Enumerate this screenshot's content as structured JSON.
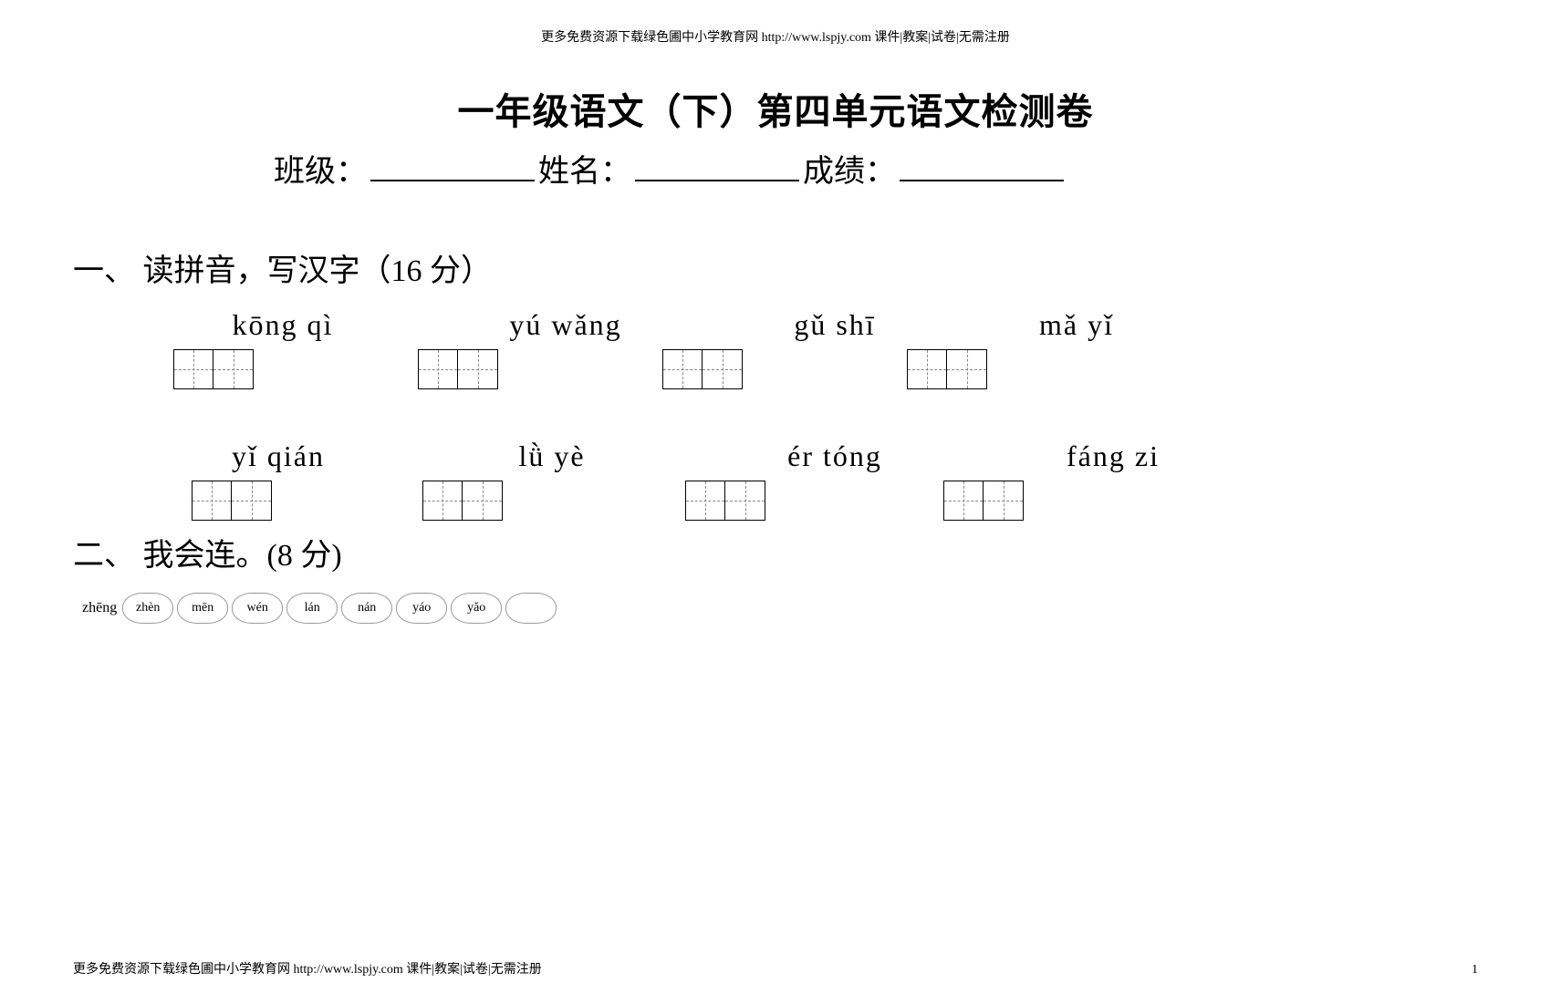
{
  "header_note": "更多免费资源下载绿色圃中小学教育网 http://www.lspjy.com 课件|教案|试卷|无需注册",
  "title": "一年级语文（下）第四单元语文检测卷",
  "info": {
    "class_label": "班级：",
    "name_label": "姓名：",
    "score_label": "成绩："
  },
  "section1": {
    "heading": "一、 读拼音，写汉字（16 分）",
    "row1": {
      "g1": "kōng   qì",
      "g2": "yú   wǎng",
      "g3": "gǔ   shī",
      "g4": "mǎ   yǐ"
    },
    "row2": {
      "g1": "yǐ  qián",
      "g2": "lǜ  yè",
      "g3": "ér   tóng",
      "g4": "fáng   zi"
    }
  },
  "section2": {
    "heading": "二、 我会连。(8 分)",
    "first_label": "zhēng",
    "pills": [
      "zhèn",
      "mēn",
      "wén",
      "lán",
      "nán",
      "yáo",
      "yǎo",
      ""
    ]
  },
  "footer_note": "更多免费资源下载绿色圃中小学教育网 http://www.lspjy.com 课件|教案|试卷|无需注册",
  "page_number": "1"
}
